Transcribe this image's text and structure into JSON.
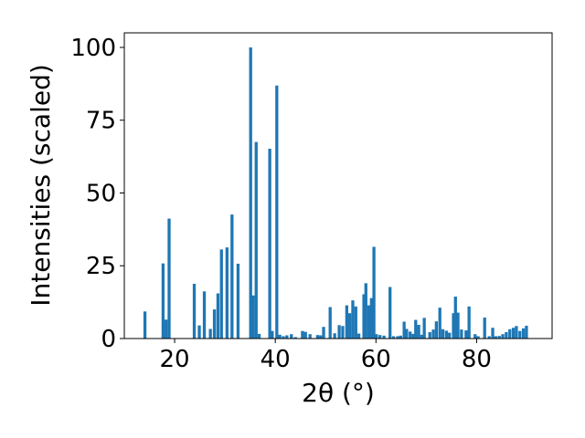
{
  "chart_data": {
    "type": "bar",
    "xlabel": "2θ (°)",
    "ylabel": "Intensities (scaled)",
    "xlim": [
      10,
      95
    ],
    "ylim": [
      0,
      105
    ],
    "xticks": [
      20,
      40,
      60,
      80
    ],
    "yticks": [
      0,
      25,
      50,
      75,
      100
    ],
    "grid": false,
    "bar_color": "#1f77b4",
    "bar_width": 0.6,
    "x": [
      14.1,
      17.7,
      18.3,
      18.9,
      23.9,
      24.9,
      25.9,
      27.1,
      27.9,
      28.6,
      29.3,
      30.4,
      31.4,
      32.6,
      35.1,
      35.6,
      36.2,
      36.8,
      38.9,
      39.4,
      40.3,
      40.9,
      41.6,
      42.3,
      43.2,
      44.0,
      45.4,
      46.0,
      46.9,
      48.4,
      49.0,
      49.6,
      50.9,
      51.8,
      52.7,
      53.4,
      54.2,
      54.8,
      55.4,
      56.0,
      56.6,
      57.6,
      58.0,
      58.6,
      59.1,
      59.6,
      60.1,
      60.8,
      61.6,
      62.8,
      63.5,
      64.3,
      64.9,
      65.6,
      66.1,
      66.8,
      67.4,
      67.9,
      68.5,
      69.1,
      69.6,
      70.7,
      71.4,
      72.0,
      72.7,
      73.3,
      74.0,
      74.6,
      75.4,
      75.8,
      76.3,
      77.0,
      77.9,
      78.5,
      79.7,
      80.3,
      81.6,
      82.5,
      83.2,
      83.8,
      84.5,
      85.2,
      85.9,
      86.6,
      87.3,
      87.9,
      88.6,
      89.3,
      89.9
    ],
    "values": [
      9.3,
      25.8,
      6.5,
      41.2,
      18.8,
      4.5,
      16.2,
      3.3,
      10.0,
      15.5,
      30.6,
      31.3,
      42.6,
      25.7,
      100.0,
      14.8,
      67.5,
      1.6,
      65.2,
      2.6,
      86.9,
      1.3,
      0.8,
      1.1,
      1.5,
      0.5,
      2.6,
      2.3,
      1.5,
      1.2,
      1.1,
      4.0,
      10.8,
      1.8,
      4.6,
      4.3,
      11.4,
      8.7,
      13.1,
      11.0,
      1.7,
      15.2,
      19.0,
      11.4,
      13.9,
      31.5,
      1.5,
      1.2,
      1.0,
      17.7,
      0.8,
      0.8,
      1.0,
      5.8,
      3.3,
      2.4,
      1.6,
      6.4,
      4.7,
      1.3,
      7.1,
      2.2,
      3.1,
      5.9,
      10.6,
      3.2,
      2.7,
      2.0,
      8.7,
      14.4,
      8.9,
      3.1,
      2.8,
      11.0,
      1.5,
      0.8,
      7.2,
      0.8,
      3.7,
      0.8,
      0.9,
      1.5,
      2.2,
      3.2,
      3.7,
      4.3,
      2.6,
      3.5,
      4.4
    ]
  }
}
